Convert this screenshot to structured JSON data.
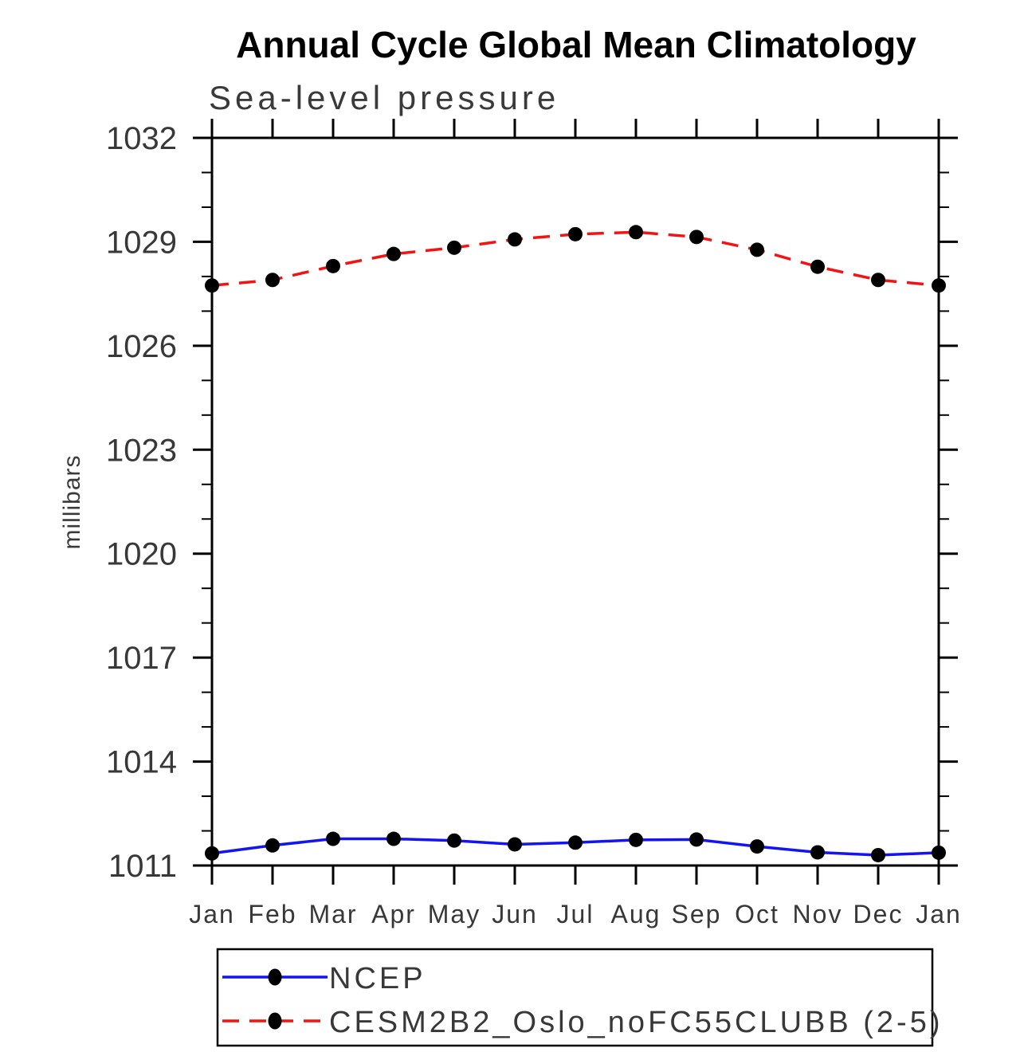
{
  "chart_data": {
    "type": "line",
    "title": "Annual Cycle Global Mean Climatology",
    "subtitle": "Sea-level pressure",
    "ylabel": "millibars",
    "categories": [
      "Jan",
      "Feb",
      "Mar",
      "Apr",
      "May",
      "Jun",
      "Jul",
      "Aug",
      "Sep",
      "Oct",
      "Nov",
      "Dec",
      "Jan"
    ],
    "ylim": [
      1011,
      1032
    ],
    "yticks_major": [
      1011,
      1014,
      1017,
      1020,
      1023,
      1026,
      1029,
      1032
    ],
    "minor_tick_interval": 1,
    "grid": false,
    "legend_position": "bottom-left",
    "series": [
      {
        "name": "NCEP",
        "line_style": "solid",
        "color": "#1414f0",
        "marker": "filled-circle",
        "marker_color": "#000000",
        "values": [
          1011.35,
          1011.58,
          1011.77,
          1011.77,
          1011.72,
          1011.61,
          1011.66,
          1011.74,
          1011.75,
          1011.55,
          1011.38,
          1011.3,
          1011.37
        ]
      },
      {
        "name": "CESM2B2_Oslo_noFC55CLUBB (2-5)",
        "line_style": "dashed",
        "color": "#f21414",
        "marker": "filled-circle",
        "marker_color": "#000000",
        "values": [
          1027.74,
          1027.9,
          1028.3,
          1028.65,
          1028.83,
          1029.07,
          1029.22,
          1029.28,
          1029.14,
          1028.77,
          1028.28,
          1027.9,
          1027.74
        ]
      }
    ],
    "colors": {
      "axis": "#000000",
      "background": "#ffffff",
      "tick_label": "#383838"
    }
  }
}
